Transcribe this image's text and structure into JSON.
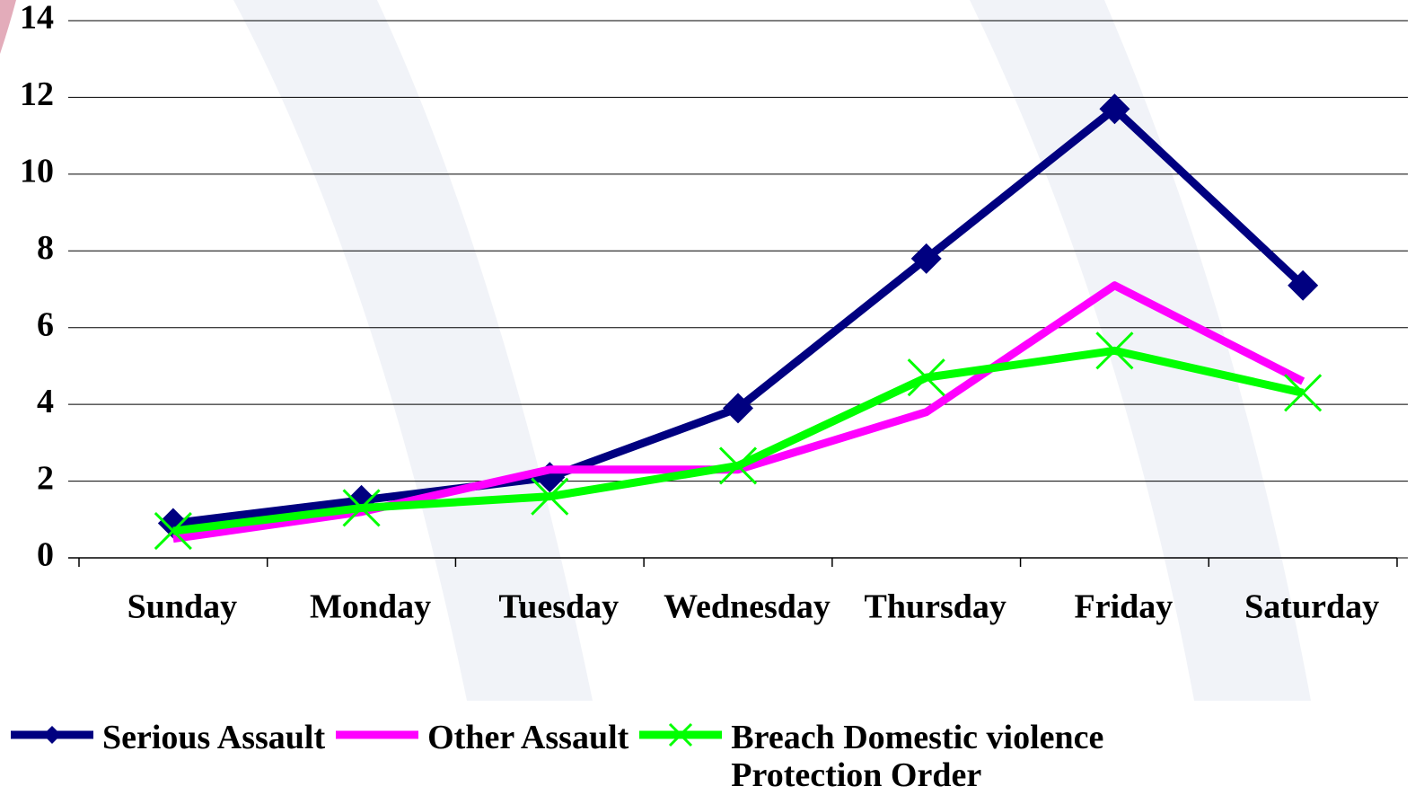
{
  "chart_data": {
    "type": "line",
    "categories": [
      "Sunday",
      "Monday",
      "Tuesday",
      "Wednesday",
      "Thursday",
      "Friday",
      "Saturday"
    ],
    "series": [
      {
        "name": "Serious Assault",
        "color": "#000080",
        "marker": "diamond",
        "values": [
          0.9,
          1.5,
          2.1,
          3.9,
          7.8,
          11.7,
          7.1
        ]
      },
      {
        "name": "Other Assault",
        "color": "#ff00ff",
        "marker": "none",
        "values": [
          0.5,
          1.2,
          2.3,
          2.3,
          3.8,
          7.1,
          4.6
        ]
      },
      {
        "name": "Breach Domestic violence Protection Order",
        "color": "#00ff00",
        "marker": "x",
        "values": [
          0.7,
          1.3,
          1.6,
          2.4,
          4.7,
          5.4,
          4.3
        ]
      }
    ],
    "ylim": [
      0,
      14
    ],
    "yticks": [
      0,
      2,
      4,
      6,
      8,
      10,
      12,
      14
    ],
    "grid": true,
    "legend": "bottom"
  }
}
